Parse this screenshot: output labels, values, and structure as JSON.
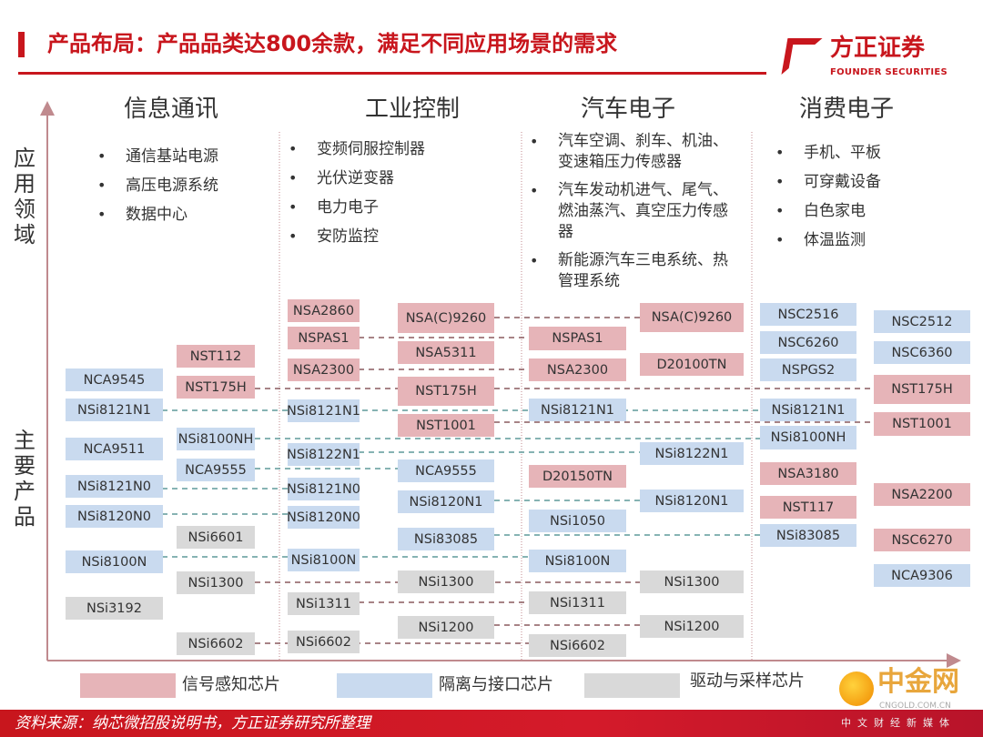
{
  "title": "产品布局：产品品类达800余款，满足不同应用场景的需求",
  "logo": {
    "cn": "方正证券",
    "en": "FOUNDER SECURITIES"
  },
  "axis_labels": {
    "application": "应用领域",
    "products": "主要产品"
  },
  "colors": {
    "signal": "#e6b4b8",
    "isolation": "#c9daef",
    "driver": "#d9d9d9",
    "brand": "#c8161d"
  },
  "columns": [
    {
      "header": "信息通讯",
      "bullets": [
        "通信基站电源",
        "高压电源系统",
        "数据中心"
      ]
    },
    {
      "header": "工业控制",
      "bullets": [
        "变频伺服控制器",
        "光伏逆变器",
        "电力电子",
        "安防监控"
      ]
    },
    {
      "header": "汽车电子",
      "bullets": [
        "汽车空调、刹车、机油、变速箱压力传感器",
        "汽车发动机进气、尾气、燃油蒸汽、真空压力传感器",
        "新能源汽车三电系统、热管理系统"
      ]
    },
    {
      "header": "消费电子",
      "bullets": [
        "手机、平板",
        "可穿戴设备",
        "白色家电",
        "体温监测"
      ]
    }
  ],
  "products": [
    {
      "label": "NCA9545",
      "type": "blue"
    },
    {
      "label": "NSi8121N1",
      "type": "blue"
    },
    {
      "label": "NCA9511",
      "type": "blue"
    },
    {
      "label": "NSi8121N0",
      "type": "blue"
    },
    {
      "label": "NSi8120N0",
      "type": "blue"
    },
    {
      "label": "NSi8100N",
      "type": "blue"
    },
    {
      "label": "NSi3192",
      "type": "gray"
    },
    {
      "label": "NST112",
      "type": "red"
    },
    {
      "label": "NST175H",
      "type": "red"
    },
    {
      "label": "NSi8100NH",
      "type": "blue"
    },
    {
      "label": "NCA9555",
      "type": "blue"
    },
    {
      "label": "NSi6601",
      "type": "gray"
    },
    {
      "label": "NSi1300",
      "type": "gray"
    },
    {
      "label": "NSi6602",
      "type": "gray"
    },
    {
      "label": "NSA2860",
      "type": "red"
    },
    {
      "label": "NSPAS1",
      "type": "red"
    },
    {
      "label": "NSA2300",
      "type": "red"
    },
    {
      "label": "NSi8121N1",
      "type": "blue"
    },
    {
      "label": "NSi8122N1",
      "type": "blue"
    },
    {
      "label": "NSi8121N0",
      "type": "blue"
    },
    {
      "label": "NSi8120N0",
      "type": "blue"
    },
    {
      "label": "NSi8100N",
      "type": "blue"
    },
    {
      "label": "NSi1311",
      "type": "gray"
    },
    {
      "label": "NSi6602",
      "type": "gray"
    },
    {
      "label": "NSA(C)9260",
      "type": "red"
    },
    {
      "label": "NSA5311",
      "type": "red"
    },
    {
      "label": "NST175H",
      "type": "red"
    },
    {
      "label": "NST1001",
      "type": "red"
    },
    {
      "label": "NCA9555",
      "type": "blue"
    },
    {
      "label": "NSi8120N1",
      "type": "blue"
    },
    {
      "label": "NSi83085",
      "type": "blue"
    },
    {
      "label": "NSi1300",
      "type": "gray"
    },
    {
      "label": "NSi1200",
      "type": "gray"
    },
    {
      "label": "NSPAS1",
      "type": "red"
    },
    {
      "label": "NSA2300",
      "type": "red"
    },
    {
      "label": "NSi8121N1",
      "type": "blue"
    },
    {
      "label": "D20150TN",
      "type": "red"
    },
    {
      "label": "NSi1050",
      "type": "blue"
    },
    {
      "label": "NSi8100N",
      "type": "blue"
    },
    {
      "label": "NSi1311",
      "type": "gray"
    },
    {
      "label": "NSi6602",
      "type": "gray"
    },
    {
      "label": "NSA(C)9260",
      "type": "red"
    },
    {
      "label": "D20100TN",
      "type": "red"
    },
    {
      "label": "NSi8122N1",
      "type": "blue"
    },
    {
      "label": "NSi8120N1",
      "type": "blue"
    },
    {
      "label": "NSi1300",
      "type": "gray"
    },
    {
      "label": "NSi1200",
      "type": "gray"
    },
    {
      "label": "NSC2516",
      "type": "blue"
    },
    {
      "label": "NSC6260",
      "type": "blue"
    },
    {
      "label": "NSPGS2",
      "type": "blue"
    },
    {
      "label": "NSi8121N1",
      "type": "blue"
    },
    {
      "label": "NSi8100NH",
      "type": "blue"
    },
    {
      "label": "NSA3180",
      "type": "red"
    },
    {
      "label": "NST117",
      "type": "red"
    },
    {
      "label": "NSi83085",
      "type": "blue"
    },
    {
      "label": "NSC2512",
      "type": "blue"
    },
    {
      "label": "NSC6360",
      "type": "blue"
    },
    {
      "label": "NST175H",
      "type": "red"
    },
    {
      "label": "NST1001",
      "type": "red"
    },
    {
      "label": "NSA2200",
      "type": "red"
    },
    {
      "label": "NSC6270",
      "type": "red"
    },
    {
      "label": "NCA9306",
      "type": "blue"
    }
  ],
  "legend": [
    {
      "label": "信号感知芯片",
      "type": "red"
    },
    {
      "label": "隔离与接口芯片",
      "type": "blue"
    },
    {
      "label": "驱动与采样芯片",
      "type": "gray"
    }
  ],
  "source": "资料来源：纳芯微招股说明书，方正证券研究所整理",
  "watermark": {
    "cn": "中金网",
    "en": "CNGOLD.COM.CN",
    "sub": "中文财经新媒体"
  }
}
